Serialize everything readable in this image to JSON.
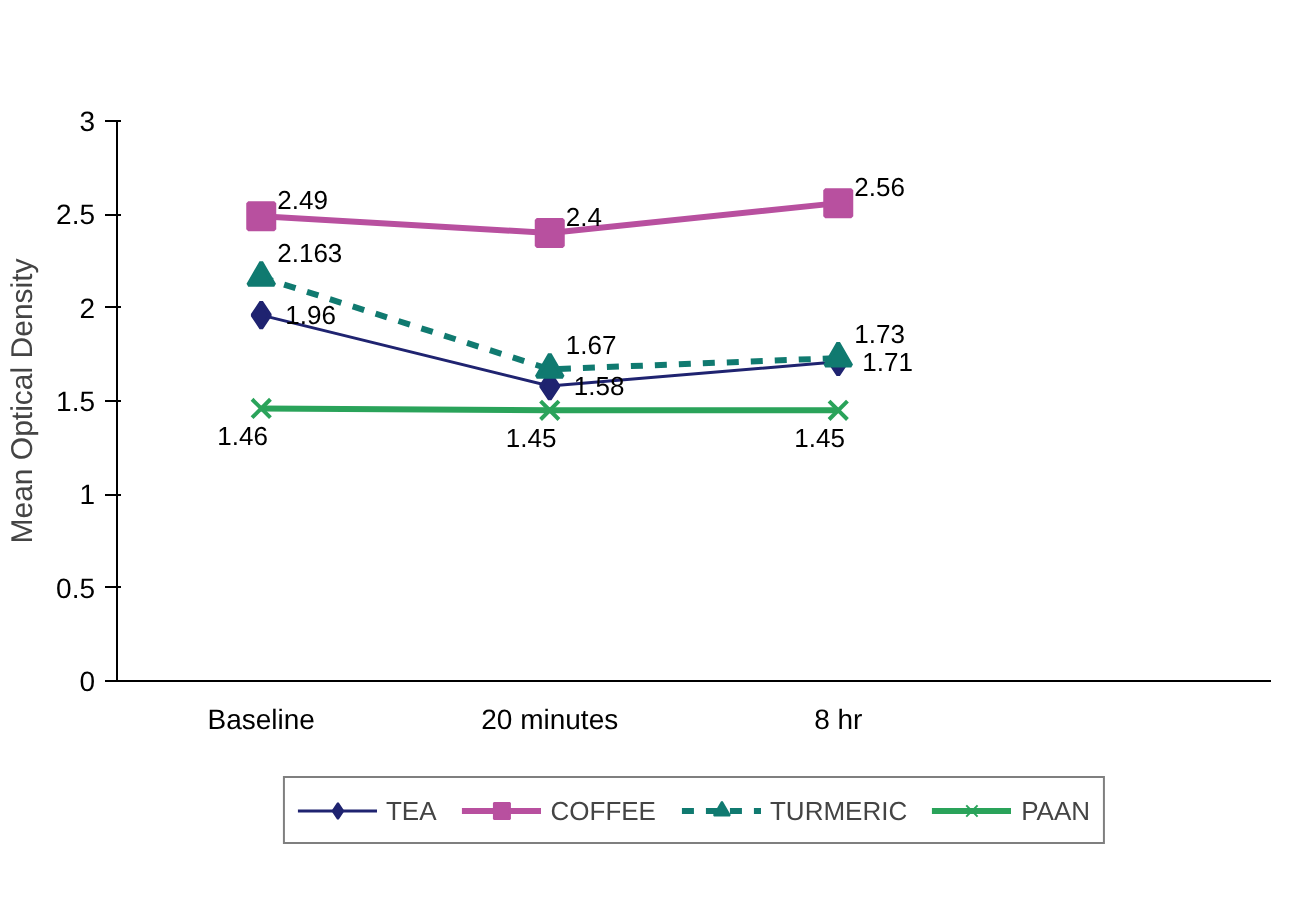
{
  "chart_data": {
    "type": "line",
    "ylabel": "Mean Optical Density",
    "categories": [
      "Baseline",
      "20 minutes",
      "8 hr",
      null
    ],
    "series": [
      {
        "name": "TEA",
        "color": "#1f2370",
        "marker": "diamond",
        "line_style": "solid",
        "values": [
          1.96,
          1.58,
          1.71,
          null
        ]
      },
      {
        "name": "COFFEE",
        "color": "#b8509f",
        "marker": "square",
        "line_style": "solid",
        "values": [
          2.49,
          2.4,
          2.56,
          null
        ]
      },
      {
        "name": "TURMERIC",
        "color": "#107a70",
        "marker": "triangle",
        "line_style": "dashed",
        "values": [
          2.163,
          1.67,
          1.73,
          null
        ]
      },
      {
        "name": "PAAN",
        "color": "#2aa35a",
        "marker": "cross",
        "line_style": "solid",
        "values": [
          1.46,
          1.45,
          1.45,
          null
        ]
      }
    ],
    "ylim": [
      0,
      3
    ],
    "yticks": [
      0,
      0.5,
      1,
      1.5,
      2,
      2.5,
      3
    ],
    "legend": "bottom",
    "data_labels": true
  }
}
